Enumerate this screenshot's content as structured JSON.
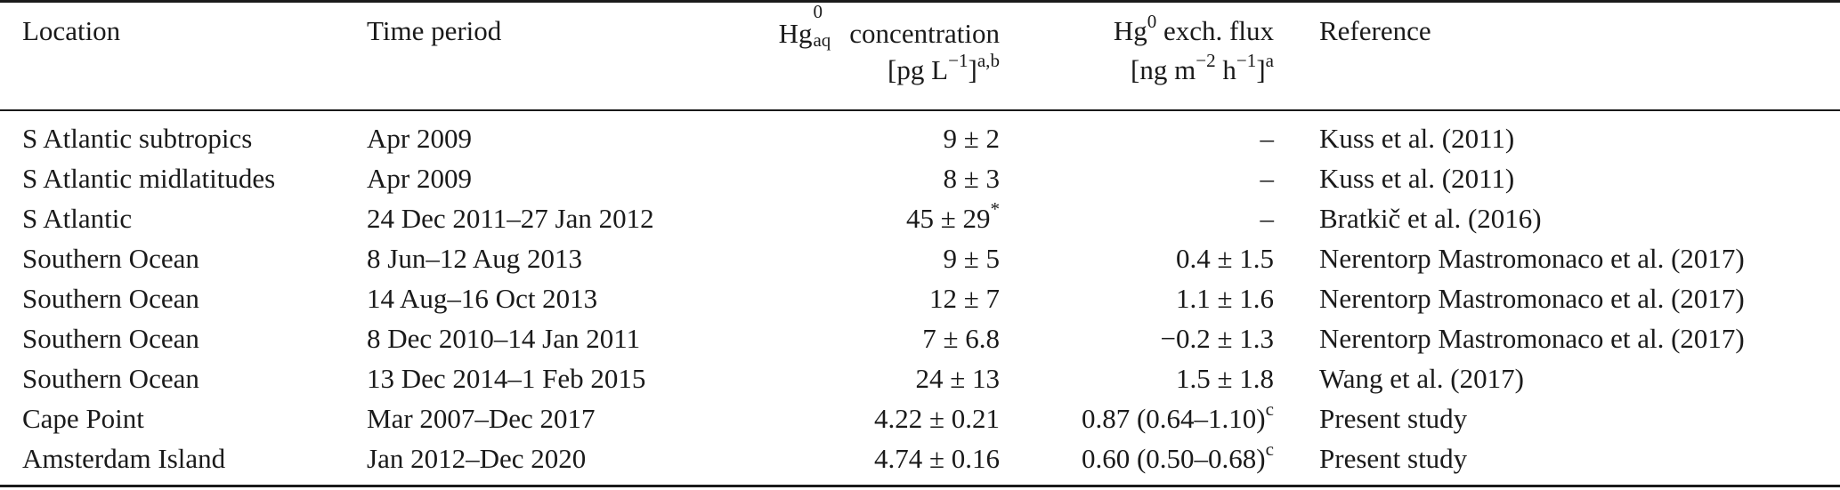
{
  "headers": {
    "location": "Location",
    "time_period": "Time period",
    "concentration": {
      "base": "Hg",
      "sup": "0",
      "sub": "aq",
      "label": "concentration",
      "unit_open": "[pg L",
      "unit_exp": "−1",
      "unit_close": "]",
      "note": "a,b"
    },
    "flux": {
      "base": "Hg",
      "sup": "0",
      "label": "exch. flux",
      "unit_open": "[ng m",
      "unit_exp1": "−2",
      "unit_mid": " h",
      "unit_exp2": "−1",
      "unit_close": "]",
      "note": "a"
    },
    "reference": "Reference"
  },
  "rows": [
    {
      "location": "S Atlantic subtropics",
      "time": "Apr 2009",
      "conc": "9 ± 2",
      "conc_note": "",
      "flux": "–",
      "flux_note": "",
      "ref": "Kuss et al. (2011)"
    },
    {
      "location": "S Atlantic midlatitudes",
      "time": "Apr 2009",
      "conc": "8 ± 3",
      "conc_note": "",
      "flux": "–",
      "flux_note": "",
      "ref": "Kuss et al. (2011)"
    },
    {
      "location": "S Atlantic",
      "time": "24 Dec 2011–27 Jan 2012",
      "conc": "45 ± 29",
      "conc_note": "*",
      "flux": "–",
      "flux_note": "",
      "ref": "Bratkič et al. (2016)"
    },
    {
      "location": "Southern Ocean",
      "time": "8 Jun–12 Aug 2013",
      "conc": "9 ± 5",
      "conc_note": "",
      "flux": "0.4 ± 1.5",
      "flux_note": "",
      "ref": "Nerentorp Mastromonaco et al. (2017)"
    },
    {
      "location": "Southern Ocean",
      "time": "14 Aug–16 Oct 2013",
      "conc": "12 ± 7",
      "conc_note": "",
      "flux": "1.1 ± 1.6",
      "flux_note": "",
      "ref": "Nerentorp Mastromonaco et al. (2017)"
    },
    {
      "location": "Southern Ocean",
      "time": "8 Dec 2010–14 Jan 2011",
      "conc": "7 ± 6.8",
      "conc_note": "",
      "flux": "−0.2 ± 1.3",
      "flux_note": "",
      "ref": "Nerentorp Mastromonaco et al. (2017)"
    },
    {
      "location": "Southern Ocean",
      "time": "13 Dec 2014–1 Feb 2015",
      "conc": "24 ± 13",
      "conc_note": "",
      "flux": "1.5 ± 1.8",
      "flux_note": "",
      "ref": "Wang et al. (2017)"
    },
    {
      "location": "Cape Point",
      "time": "Mar 2007–Dec 2017",
      "conc": "4.22 ± 0.21",
      "conc_note": "",
      "flux": "0.87 (0.64–1.10)",
      "flux_note": "c",
      "ref": "Present study"
    },
    {
      "location": "Amsterdam Island",
      "time": "Jan 2012–Dec 2020",
      "conc": "4.74 ± 0.16",
      "conc_note": "",
      "flux": "0.60 (0.50–0.68)",
      "flux_note": "c",
      "ref": "Present study"
    }
  ]
}
